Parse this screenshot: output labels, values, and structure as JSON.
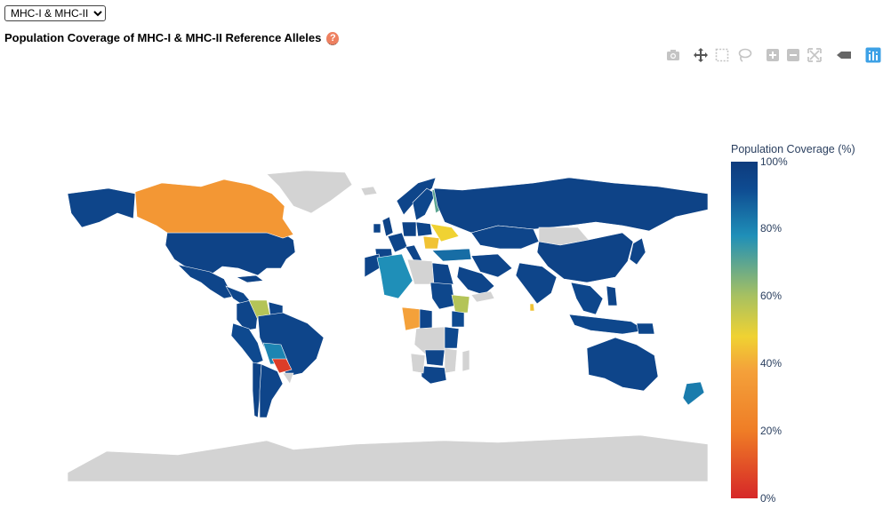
{
  "selector": {
    "options": [
      "MHC-I & MHC-II"
    ],
    "selected": "MHC-I & MHC-II"
  },
  "title": "Population Coverage of MHC-I & MHC-II Reference Alleles",
  "help_icon": "question-circle-icon",
  "toolbar": {
    "icons": [
      "camera-icon",
      "pan-icon",
      "box-select-icon",
      "lasso-select-icon",
      "zoom-in-icon",
      "zoom-out-icon",
      "autoscale-icon",
      "reset-axes-icon",
      "plotly-logo-icon"
    ]
  },
  "colors": {
    "no_data": "#d3d3d3",
    "colorscale": [
      "#d62728",
      "#ef7d26",
      "#f4a13a",
      "#f0d232",
      "#a8c160",
      "#1f8fb8",
      "#0e4b91",
      "#0d3b7d"
    ]
  },
  "chart_data": {
    "type": "choropleth",
    "title": "Population Coverage of MHC-I & MHC-II Reference Alleles",
    "colorbar": {
      "title": "Population Coverage (%)",
      "range": [
        0,
        100
      ],
      "ticks": [
        "100%",
        "80%",
        "60%",
        "40%",
        "20%",
        "0%"
      ]
    },
    "values": [
      {
        "region": "United States",
        "value": 96
      },
      {
        "region": "Alaska",
        "value": 95
      },
      {
        "region": "Canada",
        "value": 33
      },
      {
        "region": "Greenland",
        "value": null
      },
      {
        "region": "Mexico",
        "value": 95
      },
      {
        "region": "Central America",
        "value": 94
      },
      {
        "region": "Cuba",
        "value": 96
      },
      {
        "region": "Colombia",
        "value": 95
      },
      {
        "region": "Venezuela",
        "value": 58
      },
      {
        "region": "Guyana",
        "value": 95
      },
      {
        "region": "Peru",
        "value": 93
      },
      {
        "region": "Brazil",
        "value": 95
      },
      {
        "region": "Bolivia",
        "value": 80
      },
      {
        "region": "Paraguay",
        "value": 5
      },
      {
        "region": "Chile",
        "value": 96
      },
      {
        "region": "Argentina",
        "value": 95
      },
      {
        "region": "Uruguay",
        "value": null
      },
      {
        "region": "Norway",
        "value": 95
      },
      {
        "region": "Sweden",
        "value": 94
      },
      {
        "region": "Finland",
        "value": 70
      },
      {
        "region": "Iceland",
        "value": null
      },
      {
        "region": "United Kingdom",
        "value": 96
      },
      {
        "region": "Ireland",
        "value": 95
      },
      {
        "region": "France",
        "value": 95
      },
      {
        "region": "Spain",
        "value": 95
      },
      {
        "region": "Italy",
        "value": 95
      },
      {
        "region": "Germany",
        "value": 96
      },
      {
        "region": "Poland",
        "value": 95
      },
      {
        "region": "Ukraine",
        "value": 48
      },
      {
        "region": "Romania",
        "value": 45
      },
      {
        "region": "Turkey",
        "value": 85
      },
      {
        "region": "Russia",
        "value": 96
      },
      {
        "region": "Kazakhstan",
        "value": 95
      },
      {
        "region": "Mongolia",
        "value": null
      },
      {
        "region": "China",
        "value": 96
      },
      {
        "region": "India",
        "value": 95
      },
      {
        "region": "Iran",
        "value": 95
      },
      {
        "region": "Saudi Arabia",
        "value": 95
      },
      {
        "region": "Yemen",
        "value": null
      },
      {
        "region": "Japan",
        "value": 95
      },
      {
        "region": "Southeast Asia",
        "value": 94
      },
      {
        "region": "Indonesia",
        "value": 94
      },
      {
        "region": "Philippines",
        "value": 95
      },
      {
        "region": "Sri Lanka",
        "value": 45
      },
      {
        "region": "Morocco",
        "value": 95
      },
      {
        "region": "Algeria",
        "value": 78
      },
      {
        "region": "Libya",
        "value": null
      },
      {
        "region": "Egypt",
        "value": 95
      },
      {
        "region": "Sudan",
        "value": 94
      },
      {
        "region": "Ethiopia",
        "value": 58
      },
      {
        "region": "Kenya",
        "value": 92
      },
      {
        "region": "Nigeria",
        "value": 38
      },
      {
        "region": "Cameroon",
        "value": 95
      },
      {
        "region": "DR Congo",
        "value": null
      },
      {
        "region": "Tanzania",
        "value": 93
      },
      {
        "region": "Zambia",
        "value": 95
      },
      {
        "region": "Mozambique",
        "value": null
      },
      {
        "region": "South Africa",
        "value": 95
      },
      {
        "region": "Namibia",
        "value": null
      },
      {
        "region": "Madagascar",
        "value": null
      },
      {
        "region": "Australia",
        "value": 95
      },
      {
        "region": "New Zealand",
        "value": 82
      },
      {
        "region": "Papua New Guinea",
        "value": 94
      },
      {
        "region": "Antarctica",
        "value": null
      }
    ]
  }
}
